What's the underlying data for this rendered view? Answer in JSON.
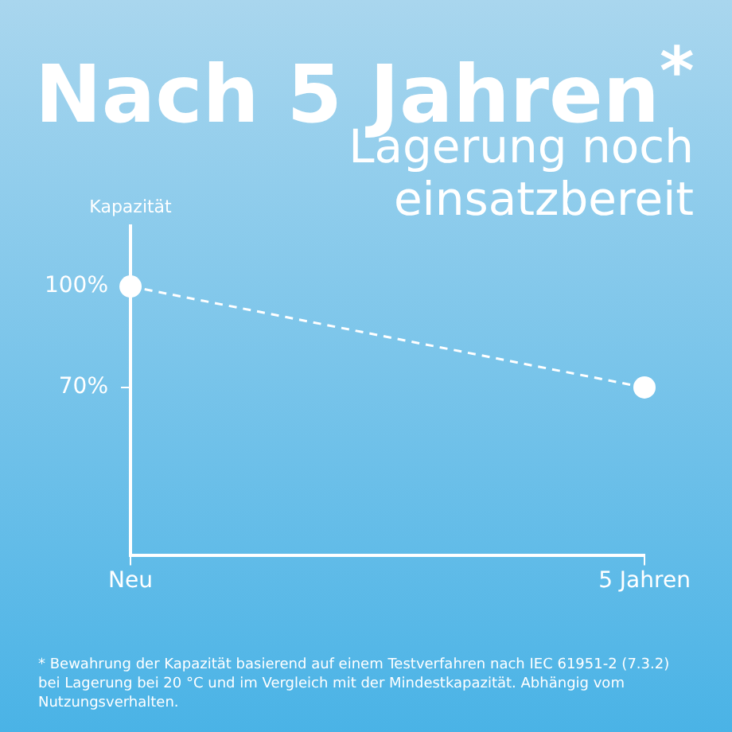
{
  "chart_data": {
    "type": "line",
    "title": "Nach 5 Jahren$^{*}$",
    "subtitle": "Lagerung noch einsatzbereit",
    "ylabel": "Kapazität",
    "categories": [
      "Neu",
      "5 Jahren"
    ],
    "series": [
      {
        "color": "#ffffff",
        "values": [
          100,
          70
        ]
      }
    ],
    "ylim": [
      20,
      118
    ],
    "yticks": [
      {
        "value": 100,
        "label": "100%"
      },
      {
        "value": 70,
        "label": "70%"
      }
    ],
    "marker": "circle",
    "line_style": "dashed",
    "grid": false,
    "legend": false,
    "annotations": [
      "* Bewahrung der Kapazität basierend auf einem Testverfahren nach IEC 61951-2 (7.3.2) bei Lagerung bei 20 °C und im Vergleich mit der Mindestkapazität. Abhängig vom Nutzungsverhalten."
    ]
  }
}
